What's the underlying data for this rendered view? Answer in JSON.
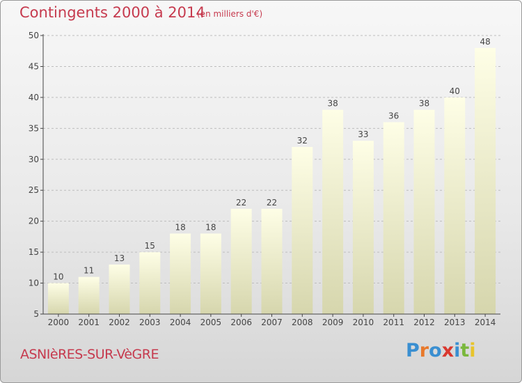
{
  "header": {
    "title": "Contingents 2000 à 2014",
    "subtitle": "(en milliers d'€)"
  },
  "footer": {
    "commune": "ASNIèRES-SUR-VèGRE",
    "logo_text": "Proxiti",
    "logo_colors": [
      "#3a8fd1",
      "#e8792b",
      "#3a8fd1",
      "#d9382f",
      "#3a8fd1",
      "#7ab83c",
      "#e8c42b"
    ]
  },
  "colors": {
    "title": "#c63a4e",
    "bar_top": "#fefee6",
    "bar_bottom": "#d6d6ad",
    "axis": "#444444",
    "grid": "#bdbdbd"
  },
  "chart_data": {
    "type": "bar",
    "title": "Contingents 2000 à 2014",
    "subtitle": "(en milliers d'€)",
    "categories": [
      "2000",
      "2001",
      "2002",
      "2003",
      "2004",
      "2005",
      "2006",
      "2007",
      "2008",
      "2009",
      "2010",
      "2011",
      "2012",
      "2013",
      "2014"
    ],
    "values": [
      10,
      11,
      13,
      15,
      18,
      18,
      22,
      22,
      32,
      38,
      33,
      36,
      38,
      40,
      48
    ],
    "ylim": [
      5,
      50
    ],
    "yticks": [
      5,
      10,
      15,
      20,
      25,
      30,
      35,
      40,
      45,
      50
    ],
    "grid": true,
    "xlabel": "",
    "ylabel": ""
  }
}
